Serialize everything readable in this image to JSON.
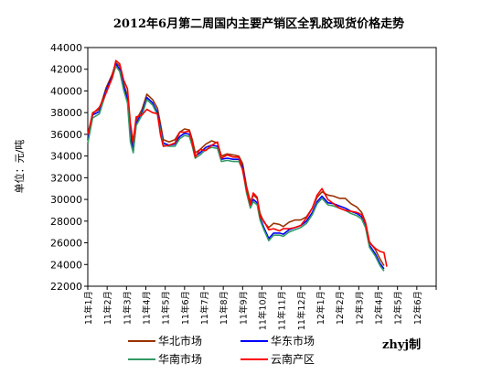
{
  "chart_data": {
    "type": "line",
    "title": "2012年6月第二周国内主要产销区全乳胶现货价格走势",
    "ylabel": "单位：元/吨",
    "xlabel": "",
    "ylim": [
      22000,
      44000
    ],
    "yticks": [
      "44000",
      "42000",
      "40000",
      "38000",
      "36000",
      "34000",
      "32000",
      "30000",
      "28000",
      "26000",
      "24000",
      "22000"
    ],
    "categories": [
      "11年1月",
      "11年2月",
      "11年3月",
      "11年4月",
      "11年5月",
      "11年6月",
      "11年7月",
      "11年8月",
      "11年9月",
      "11年10月",
      "11年11月",
      "11年12月",
      "12年1月",
      "12年2月",
      "12年3月",
      "12年4月",
      "12年5月",
      "12年6月"
    ],
    "grid": false,
    "legend_position": "bottom",
    "watermark": "zhyj制",
    "series": [
      {
        "name": "华北市场",
        "color": "#993300",
        "values": [
          [
            0,
            35700
          ],
          [
            0.25,
            38000
          ],
          [
            0.6,
            38300
          ],
          [
            0.95,
            40300
          ],
          [
            1.25,
            41500
          ],
          [
            1.45,
            42600
          ],
          [
            1.65,
            42300
          ],
          [
            1.85,
            40700
          ],
          [
            2.05,
            39500
          ],
          [
            2.2,
            36200
          ],
          [
            2.35,
            34800
          ],
          [
            2.5,
            37300
          ],
          [
            2.8,
            38300
          ],
          [
            3.05,
            39700
          ],
          [
            3.35,
            39200
          ],
          [
            3.6,
            38400
          ],
          [
            3.75,
            37000
          ],
          [
            3.9,
            35500
          ],
          [
            4.2,
            35300
          ],
          [
            4.5,
            35500
          ],
          [
            4.75,
            36200
          ],
          [
            5.0,
            36500
          ],
          [
            5.25,
            36400
          ],
          [
            5.4,
            35500
          ],
          [
            5.55,
            34300
          ],
          [
            5.8,
            34600
          ],
          [
            6.1,
            35100
          ],
          [
            6.4,
            35400
          ],
          [
            6.7,
            35200
          ],
          [
            6.9,
            34000
          ],
          [
            7.2,
            34200
          ],
          [
            7.5,
            34100
          ],
          [
            7.8,
            34000
          ],
          [
            8.0,
            33300
          ],
          [
            8.2,
            31200
          ],
          [
            8.4,
            29800
          ],
          [
            8.55,
            30400
          ],
          [
            8.75,
            30100
          ],
          [
            8.9,
            28700
          ],
          [
            9.1,
            27900
          ],
          [
            9.35,
            27400
          ],
          [
            9.6,
            27800
          ],
          [
            9.9,
            27700
          ],
          [
            10.1,
            27500
          ],
          [
            10.4,
            27900
          ],
          [
            10.7,
            28100
          ],
          [
            11.0,
            28100
          ],
          [
            11.3,
            28400
          ],
          [
            11.6,
            29200
          ],
          [
            11.85,
            30200
          ],
          [
            12.1,
            30700
          ],
          [
            12.4,
            30400
          ],
          [
            12.7,
            30300
          ],
          [
            13.0,
            30100
          ],
          [
            13.3,
            30100
          ],
          [
            13.6,
            29600
          ],
          [
            13.9,
            29300
          ],
          [
            14.15,
            28800
          ],
          [
            14.35,
            27900
          ],
          [
            14.55,
            26100
          ],
          [
            14.85,
            25400
          ],
          [
            15.1,
            24500
          ],
          [
            15.3,
            23900
          ]
        ]
      },
      {
        "name": "华东市场",
        "color": "#0000ff",
        "values": [
          [
            0,
            35500
          ],
          [
            0.25,
            37800
          ],
          [
            0.6,
            38100
          ],
          [
            0.95,
            40100
          ],
          [
            1.25,
            41300
          ],
          [
            1.45,
            42500
          ],
          [
            1.65,
            42000
          ],
          [
            1.85,
            40400
          ],
          [
            2.05,
            39200
          ],
          [
            2.2,
            35800
          ],
          [
            2.35,
            34400
          ],
          [
            2.5,
            37000
          ],
          [
            2.8,
            38000
          ],
          [
            3.05,
            39400
          ],
          [
            3.35,
            38900
          ],
          [
            3.6,
            38000
          ],
          [
            3.75,
            36600
          ],
          [
            3.9,
            35200
          ],
          [
            4.2,
            35000
          ],
          [
            4.5,
            35100
          ],
          [
            4.75,
            35800
          ],
          [
            5.0,
            36100
          ],
          [
            5.25,
            36000
          ],
          [
            5.4,
            35100
          ],
          [
            5.55,
            34000
          ],
          [
            5.8,
            34300
          ],
          [
            6.1,
            34800
          ],
          [
            6.4,
            35000
          ],
          [
            6.7,
            34900
          ],
          [
            6.9,
            33700
          ],
          [
            7.2,
            33800
          ],
          [
            7.5,
            33700
          ],
          [
            7.8,
            33700
          ],
          [
            8.0,
            33000
          ],
          [
            8.2,
            30800
          ],
          [
            8.4,
            29400
          ],
          [
            8.55,
            30000
          ],
          [
            8.75,
            29700
          ],
          [
            8.9,
            28300
          ],
          [
            9.1,
            27400
          ],
          [
            9.35,
            26400
          ],
          [
            9.6,
            26900
          ],
          [
            9.9,
            26900
          ],
          [
            10.1,
            26800
          ],
          [
            10.4,
            27200
          ],
          [
            10.7,
            27400
          ],
          [
            11.0,
            27600
          ],
          [
            11.3,
            28000
          ],
          [
            11.6,
            28800
          ],
          [
            11.85,
            29800
          ],
          [
            12.1,
            30300
          ],
          [
            12.4,
            29700
          ],
          [
            12.7,
            29600
          ],
          [
            13.0,
            29400
          ],
          [
            13.3,
            29200
          ],
          [
            13.6,
            28900
          ],
          [
            13.9,
            28700
          ],
          [
            14.15,
            28400
          ],
          [
            14.35,
            27600
          ],
          [
            14.55,
            25800
          ],
          [
            14.85,
            25000
          ],
          [
            15.1,
            24100
          ],
          [
            15.3,
            23600
          ]
        ]
      },
      {
        "name": "华南市场",
        "color": "#339966",
        "values": [
          [
            0,
            35200
          ],
          [
            0.25,
            37500
          ],
          [
            0.6,
            37900
          ],
          [
            0.95,
            39900
          ],
          [
            1.25,
            41100
          ],
          [
            1.45,
            42300
          ],
          [
            1.65,
            41800
          ],
          [
            1.85,
            40100
          ],
          [
            2.05,
            38900
          ],
          [
            2.2,
            35300
          ],
          [
            2.35,
            34300
          ],
          [
            2.5,
            36800
          ],
          [
            2.8,
            37800
          ],
          [
            3.05,
            39200
          ],
          [
            3.35,
            38700
          ],
          [
            3.6,
            37800
          ],
          [
            3.75,
            36400
          ],
          [
            3.9,
            35000
          ],
          [
            4.2,
            34900
          ],
          [
            4.5,
            34900
          ],
          [
            4.75,
            35600
          ],
          [
            5.0,
            35900
          ],
          [
            5.25,
            35800
          ],
          [
            5.4,
            34900
          ],
          [
            5.55,
            33800
          ],
          [
            5.8,
            34100
          ],
          [
            6.1,
            34600
          ],
          [
            6.4,
            34800
          ],
          [
            6.7,
            34700
          ],
          [
            6.9,
            33500
          ],
          [
            7.2,
            33600
          ],
          [
            7.5,
            33500
          ],
          [
            7.8,
            33500
          ],
          [
            8.0,
            32800
          ],
          [
            8.2,
            30600
          ],
          [
            8.4,
            29200
          ],
          [
            8.55,
            29800
          ],
          [
            8.75,
            29500
          ],
          [
            8.9,
            28100
          ],
          [
            9.1,
            27200
          ],
          [
            9.35,
            26200
          ],
          [
            9.6,
            26700
          ],
          [
            9.9,
            26700
          ],
          [
            10.1,
            26600
          ],
          [
            10.4,
            27000
          ],
          [
            10.7,
            27200
          ],
          [
            11.0,
            27400
          ],
          [
            11.3,
            27800
          ],
          [
            11.6,
            28600
          ],
          [
            11.85,
            29600
          ],
          [
            12.1,
            30100
          ],
          [
            12.4,
            29500
          ],
          [
            12.7,
            29400
          ],
          [
            13.0,
            29200
          ],
          [
            13.3,
            29000
          ],
          [
            13.6,
            28700
          ],
          [
            13.9,
            28500
          ],
          [
            14.15,
            28200
          ],
          [
            14.35,
            27400
          ],
          [
            14.55,
            25600
          ],
          [
            14.85,
            24800
          ],
          [
            15.1,
            23900
          ],
          [
            15.3,
            23400
          ]
        ]
      },
      {
        "name": "云南产区",
        "color": "#ff0000",
        "values": [
          [
            0,
            36000
          ],
          [
            0.25,
            37900
          ],
          [
            0.6,
            38500
          ],
          [
            0.95,
            39800
          ],
          [
            1.25,
            41200
          ],
          [
            1.45,
            42800
          ],
          [
            1.65,
            42500
          ],
          [
            1.85,
            41000
          ],
          [
            2.05,
            40200
          ],
          [
            2.2,
            37000
          ],
          [
            2.35,
            35300
          ],
          [
            2.5,
            37600
          ],
          [
            2.8,
            37800
          ],
          [
            3.05,
            38300
          ],
          [
            3.35,
            38000
          ],
          [
            3.6,
            37900
          ],
          [
            3.75,
            36000
          ],
          [
            3.9,
            34900
          ],
          [
            4.2,
            35000
          ],
          [
            4.5,
            35200
          ],
          [
            4.75,
            36200
          ],
          [
            5.0,
            36200
          ],
          [
            5.25,
            36300
          ],
          [
            5.4,
            35200
          ],
          [
            5.55,
            33900
          ],
          [
            5.8,
            34600
          ],
          [
            6.1,
            34500
          ],
          [
            6.4,
            35000
          ],
          [
            6.7,
            35300
          ],
          [
            6.9,
            33800
          ],
          [
            7.2,
            34100
          ],
          [
            7.5,
            33900
          ],
          [
            7.8,
            33900
          ],
          [
            8.0,
            32700
          ],
          [
            8.2,
            30900
          ],
          [
            8.4,
            29500
          ],
          [
            8.55,
            30600
          ],
          [
            8.75,
            30200
          ],
          [
            8.9,
            28400
          ],
          [
            9.1,
            28000
          ],
          [
            9.35,
            27200
          ],
          [
            9.6,
            27300
          ],
          [
            9.9,
            27100
          ],
          [
            10.1,
            27300
          ],
          [
            10.4,
            27300
          ],
          [
            10.7,
            27400
          ],
          [
            11.0,
            27600
          ],
          [
            11.3,
            28300
          ],
          [
            11.6,
            29200
          ],
          [
            11.85,
            30400
          ],
          [
            12.1,
            31000
          ],
          [
            12.4,
            30000
          ],
          [
            12.7,
            29600
          ],
          [
            13.0,
            29200
          ],
          [
            13.3,
            29000
          ],
          [
            13.6,
            28900
          ],
          [
            13.9,
            28800
          ],
          [
            14.15,
            28600
          ],
          [
            14.35,
            27800
          ],
          [
            14.55,
            26000
          ],
          [
            14.85,
            25500
          ],
          [
            15.1,
            25200
          ],
          [
            15.3,
            25100
          ],
          [
            15.45,
            23800
          ]
        ]
      }
    ]
  }
}
